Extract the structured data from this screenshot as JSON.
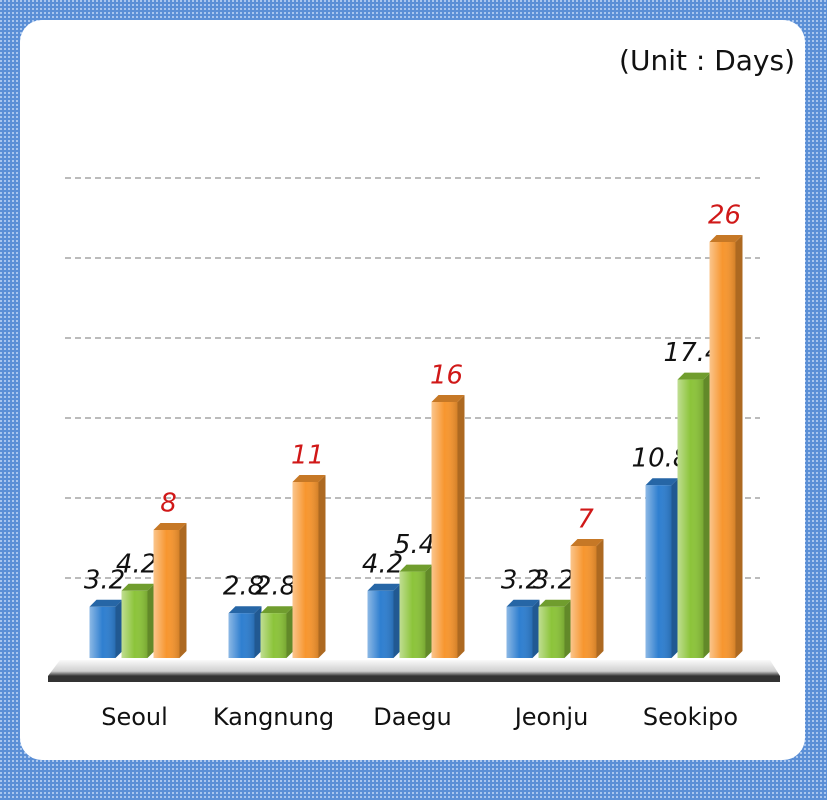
{
  "chart_data": {
    "type": "bar",
    "unit_label": "(Unit : Days)",
    "categories": [
      "Seoul",
      "Kangnung",
      "Daegu",
      "Jeonju",
      "Seokipo"
    ],
    "series": [
      {
        "color": "#2f7fd0",
        "values": [
          3.2,
          2.8,
          4.2,
          3.2,
          10.8
        ]
      },
      {
        "color": "#8cc43a",
        "values": [
          4.2,
          2.8,
          5.4,
          3.2,
          17.4
        ]
      },
      {
        "color": "#f7962f",
        "values": [
          8,
          11,
          16,
          7,
          26
        ]
      }
    ],
    "ylim": [
      0,
      30
    ],
    "yticks": [
      5,
      10,
      15,
      20,
      25,
      30
    ],
    "grid": true
  }
}
